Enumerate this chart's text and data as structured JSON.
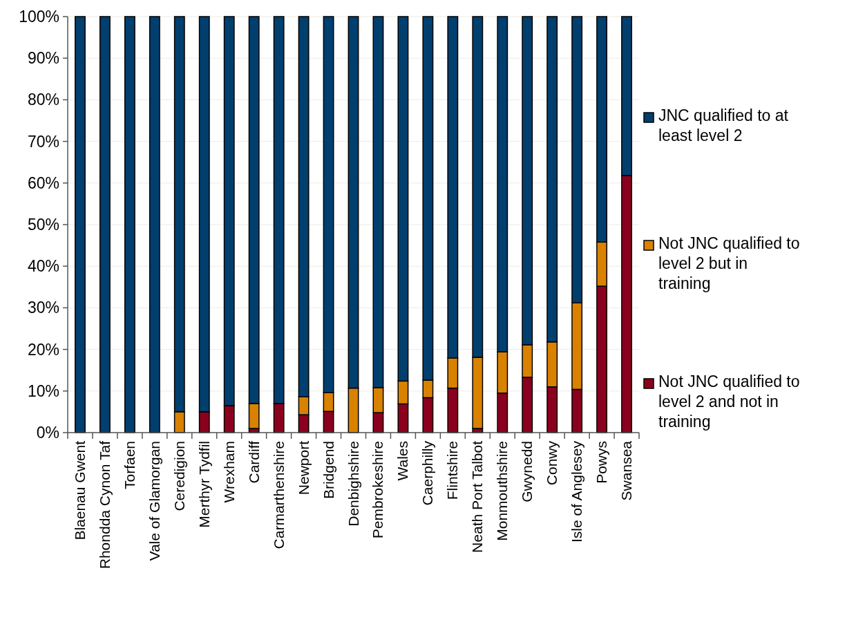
{
  "chart_data": {
    "type": "bar",
    "stacked": true,
    "categories": [
      "Blaenau Gwent",
      "Rhondda Cynon Taf",
      "Torfaen",
      "Vale of Glamorgan",
      "Ceredigion",
      "Merthyr Tydfil",
      "Wrexham",
      "Cardiff",
      "Carmarthenshire",
      "Newport",
      "Bridgend",
      "Denbighshire",
      "Pembrokeshire",
      "Wales",
      "Caerphilly",
      "Flintshire",
      "Neath Port Talbot",
      "Monmouthshire",
      "Gwynedd",
      "Conwy",
      "Isle of Anglesey",
      "Powys",
      "Swansea"
    ],
    "series": [
      {
        "name": "Not JNC qualified to level 2 and not in training",
        "color": "#8b001e",
        "values": [
          0,
          0,
          0,
          0,
          0,
          5,
          6.5,
          1,
          7,
          4.3,
          5.1,
          0,
          4.8,
          6.9,
          8.4,
          10.7,
          1,
          9.5,
          13.3,
          11,
          10.4,
          35.2,
          61.8
        ]
      },
      {
        "name": "Not JNC qualified to level 2 but in training",
        "color": "#d98200",
        "values": [
          0,
          0,
          0,
          0,
          5,
          0,
          0,
          6,
          0,
          4.3,
          4.5,
          10.7,
          6,
          5.5,
          4.2,
          7.2,
          17.1,
          9.9,
          7.8,
          10.8,
          20.8,
          10.6,
          0
        ]
      },
      {
        "name": "JNC qualified to at least level 2",
        "color": "#003f6e",
        "values": [
          100,
          100,
          100,
          100,
          95,
          95,
          93.5,
          93,
          93,
          91.4,
          90.4,
          89.3,
          89.2,
          87.6,
          87.4,
          82.1,
          81.9,
          80.6,
          78.9,
          78.2,
          68.8,
          54.2,
          38.2
        ]
      }
    ],
    "ylim": [
      0,
      100
    ],
    "yticks": [
      {
        "value": 0,
        "label": "0%"
      },
      {
        "value": 10,
        "label": "10%"
      },
      {
        "value": 20,
        "label": "20%"
      },
      {
        "value": 30,
        "label": "30%"
      },
      {
        "value": 40,
        "label": "40%"
      },
      {
        "value": 50,
        "label": "50%"
      },
      {
        "value": 60,
        "label": "60%"
      },
      {
        "value": 70,
        "label": "70%"
      },
      {
        "value": 80,
        "label": "80%"
      },
      {
        "value": 90,
        "label": "90%"
      },
      {
        "value": 100,
        "label": "100%"
      }
    ],
    "grid": "y",
    "legend": "right"
  }
}
